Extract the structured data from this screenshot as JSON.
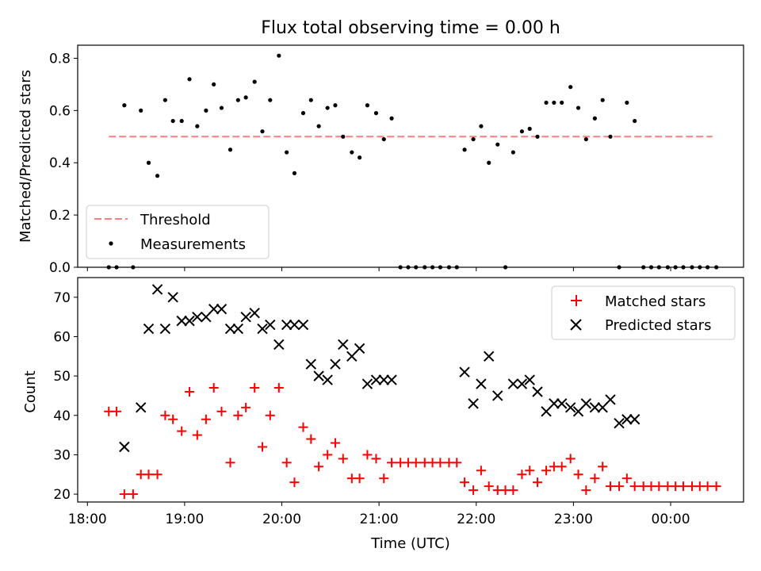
{
  "chart_data": [
    {
      "type": "scatter",
      "title": "Flux total observing time = 0.00 h",
      "xlabel": "",
      "ylabel": "Matched/Predicted stars",
      "x_unit": "hours since 18:00 UTC",
      "xlim": [
        -0.1,
        6.75
      ],
      "ylim": [
        0,
        0.85
      ],
      "yticks": [
        0.0,
        0.2,
        0.4,
        0.6,
        0.8
      ],
      "ytick_labels": [
        "0.0",
        "0.2",
        "0.4",
        "0.6",
        "0.8"
      ],
      "legend_position": "lower-left",
      "series": [
        {
          "name": "Threshold",
          "kind": "dashed-line",
          "color": "#ff7f7f",
          "x": [
            0.22,
            6.43
          ],
          "y": [
            0.5,
            0.5
          ]
        },
        {
          "name": "Measurements",
          "kind": "point",
          "color": "#000000",
          "x": [
            0.22,
            0.3,
            0.38,
            0.47,
            0.55,
            0.63,
            0.72,
            0.8,
            0.88,
            0.97,
            1.05,
            1.13,
            1.22,
            1.3,
            1.38,
            1.47,
            1.55,
            1.63,
            1.72,
            1.8,
            1.88,
            1.97,
            2.05,
            2.13,
            2.22,
            2.3,
            2.38,
            2.47,
            2.55,
            2.63,
            2.72,
            2.8,
            2.88,
            2.97,
            3.05,
            3.13,
            3.22,
            3.3,
            3.38,
            3.47,
            3.55,
            3.63,
            3.72,
            3.8,
            3.88,
            3.97,
            4.05,
            4.13,
            4.22,
            4.3,
            4.38,
            4.47,
            4.55,
            4.63,
            4.72,
            4.8,
            4.88,
            4.97,
            5.05,
            5.13,
            5.22,
            5.3,
            5.38,
            5.47,
            5.55,
            5.63,
            5.72,
            5.8,
            5.88,
            5.97,
            6.05,
            6.13,
            6.22,
            6.3,
            6.38,
            6.47
          ],
          "y": [
            0,
            0,
            0.62,
            0,
            0.6,
            0.4,
            0.35,
            0.64,
            0.56,
            0.56,
            0.72,
            0.54,
            0.6,
            0.7,
            0.61,
            0.45,
            0.64,
            0.65,
            0.71,
            0.52,
            0.64,
            0.81,
            0.44,
            0.36,
            0.59,
            0.64,
            0.54,
            0.61,
            0.62,
            0.5,
            0.44,
            0.42,
            0.62,
            0.59,
            0.49,
            0.57,
            0,
            0,
            0,
            0,
            0,
            0,
            0,
            0,
            0.45,
            0.49,
            0.54,
            0.4,
            0.47,
            0,
            0.44,
            0.52,
            0.53,
            0.5,
            0.63,
            0.63,
            0.63,
            0.69,
            0.61,
            0.49,
            0.57,
            0.64,
            0.5,
            0,
            0.63,
            0.56,
            0,
            0,
            0,
            0,
            0,
            0,
            0,
            0,
            0,
            0
          ]
        }
      ]
    },
    {
      "type": "scatter",
      "title": "",
      "xlabel": "Time (UTC)",
      "ylabel": "Count",
      "x_unit": "hours since 18:00 UTC",
      "xlim": [
        -0.1,
        6.75
      ],
      "ylim": [
        18,
        75
      ],
      "yticks": [
        20,
        30,
        40,
        50,
        60,
        70
      ],
      "xticks": [
        0,
        1,
        2,
        3,
        4,
        5,
        6
      ],
      "xtick_labels": [
        "18:00",
        "19:00",
        "20:00",
        "21:00",
        "22:00",
        "23:00",
        "00:00"
      ],
      "legend_position": "upper-right",
      "series": [
        {
          "name": "Matched stars",
          "kind": "plus",
          "color": "#ff0000",
          "x": [
            0.22,
            0.3,
            0.38,
            0.47,
            0.55,
            0.63,
            0.72,
            0.8,
            0.88,
            0.97,
            1.05,
            1.13,
            1.22,
            1.3,
            1.38,
            1.47,
            1.55,
            1.63,
            1.72,
            1.8,
            1.88,
            1.97,
            2.05,
            2.13,
            2.22,
            2.3,
            2.38,
            2.47,
            2.55,
            2.63,
            2.72,
            2.8,
            2.88,
            2.97,
            3.05,
            3.13,
            3.22,
            3.3,
            3.38,
            3.47,
            3.55,
            3.63,
            3.72,
            3.8,
            3.88,
            3.97,
            4.05,
            4.13,
            4.22,
            4.3,
            4.38,
            4.47,
            4.55,
            4.63,
            4.72,
            4.8,
            4.88,
            4.97,
            5.05,
            5.13,
            5.22,
            5.3,
            5.38,
            5.47,
            5.55,
            5.63,
            5.72,
            5.8,
            5.88,
            5.97,
            6.05,
            6.13,
            6.22,
            6.3,
            6.38,
            6.47
          ],
          "y": [
            41,
            41,
            20,
            20,
            25,
            25,
            25,
            40,
            39,
            36,
            46,
            35,
            39,
            47,
            41,
            28,
            40,
            42,
            47,
            32,
            40,
            47,
            28,
            23,
            37,
            34,
            27,
            30,
            33,
            29,
            24,
            24,
            30,
            29,
            24,
            28,
            28,
            28,
            28,
            28,
            28,
            28,
            28,
            28,
            23,
            21,
            26,
            22,
            21,
            21,
            21,
            25,
            26,
            23,
            26,
            27,
            27,
            29,
            25,
            21,
            24,
            27,
            22,
            22,
            24,
            22,
            22,
            22,
            22,
            22,
            22,
            22,
            22,
            22,
            22,
            22
          ]
        },
        {
          "name": "Predicted stars",
          "kind": "x",
          "color": "#000000",
          "x": [
            0.38,
            0.55,
            0.63,
            0.72,
            0.8,
            0.88,
            0.97,
            1.05,
            1.13,
            1.22,
            1.3,
            1.38,
            1.47,
            1.55,
            1.63,
            1.72,
            1.8,
            1.88,
            1.97,
            2.05,
            2.13,
            2.22,
            2.3,
            2.38,
            2.47,
            2.55,
            2.63,
            2.72,
            2.8,
            2.88,
            2.97,
            3.05,
            3.13,
            3.88,
            3.97,
            4.05,
            4.13,
            4.22,
            4.38,
            4.47,
            4.55,
            4.63,
            4.72,
            4.8,
            4.88,
            4.97,
            5.05,
            5.13,
            5.22,
            5.3,
            5.38,
            5.47,
            5.55,
            5.63
          ],
          "y": [
            32,
            42,
            62,
            72,
            62,
            70,
            64,
            64,
            65,
            65,
            67,
            67,
            62,
            62,
            65,
            66,
            62,
            63,
            58,
            63,
            63,
            63,
            53,
            50,
            49,
            53,
            58,
            55,
            57,
            48,
            49,
            49,
            49,
            51,
            43,
            48,
            55,
            45,
            48,
            48,
            49,
            46,
            41,
            43,
            43,
            42,
            41,
            43,
            42,
            42,
            44,
            38,
            39,
            39
          ]
        }
      ]
    }
  ]
}
